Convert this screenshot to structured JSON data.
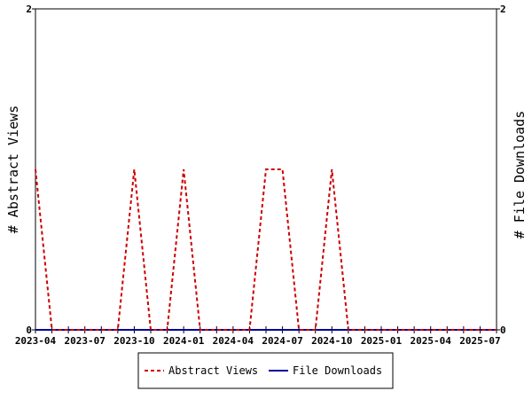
{
  "chart_data": {
    "type": "line",
    "x": [
      "2023-04",
      "2023-05",
      "2023-06",
      "2023-07",
      "2023-08",
      "2023-09",
      "2023-10",
      "2023-11",
      "2023-12",
      "2024-01",
      "2024-02",
      "2024-03",
      "2024-04",
      "2024-05",
      "2024-06",
      "2024-07",
      "2024-08",
      "2024-09",
      "2024-10",
      "2024-11",
      "2024-12",
      "2025-01",
      "2025-02",
      "2025-03",
      "2025-04",
      "2025-05",
      "2025-06",
      "2025-07",
      "2025-08"
    ],
    "xticks": [
      "2023-04",
      "2023-07",
      "2023-10",
      "2024-01",
      "2024-04",
      "2024-07",
      "2024-10",
      "2025-01",
      "2025-04",
      "2025-07"
    ],
    "series": [
      {
        "name": "Abstract Views",
        "axis": "left",
        "style": "dashed",
        "color": "#cc0000",
        "values": [
          1,
          0,
          0,
          0,
          0,
          0,
          1,
          0,
          0,
          1,
          0,
          0,
          0,
          0,
          1,
          1,
          0,
          0,
          1,
          0,
          0,
          0,
          0,
          0,
          0,
          0,
          0,
          0,
          0
        ]
      },
      {
        "name": "File Downloads",
        "axis": "right",
        "style": "solid",
        "color": "#000099",
        "values": [
          0,
          0,
          0,
          0,
          0,
          0,
          0,
          0,
          0,
          0,
          0,
          0,
          0,
          0,
          0,
          0,
          0,
          0,
          0,
          0,
          0,
          0,
          0,
          0,
          0,
          0,
          0,
          0,
          0
        ]
      }
    ],
    "ylabel": "# Abstract Views",
    "y2label": "# File Downloads",
    "ylim": [
      0,
      2
    ],
    "y2lim": [
      0,
      2
    ],
    "yticks": [
      "0",
      "2"
    ],
    "y2ticks": [
      "0",
      "2"
    ],
    "grid": false,
    "legend_position": "bottom-center"
  }
}
